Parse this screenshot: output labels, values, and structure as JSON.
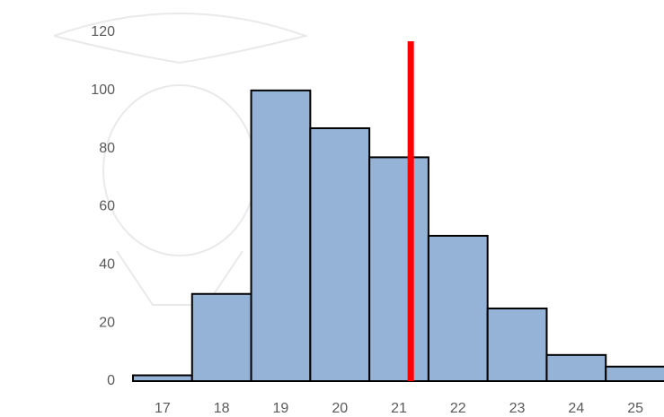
{
  "chart_data": {
    "type": "bar",
    "categories": [
      "17",
      "18",
      "19",
      "20",
      "21",
      "22",
      "23",
      "24",
      "25"
    ],
    "values": [
      2,
      30,
      100,
      87,
      77,
      50,
      25,
      9,
      5
    ],
    "color": "#95b3d7",
    "ylim": [
      0,
      120
    ],
    "yticks": [
      0,
      20,
      40,
      60,
      80,
      100,
      120
    ],
    "marker_line": {
      "x": 21.2,
      "color": "#ff0000"
    },
    "grid": false
  }
}
